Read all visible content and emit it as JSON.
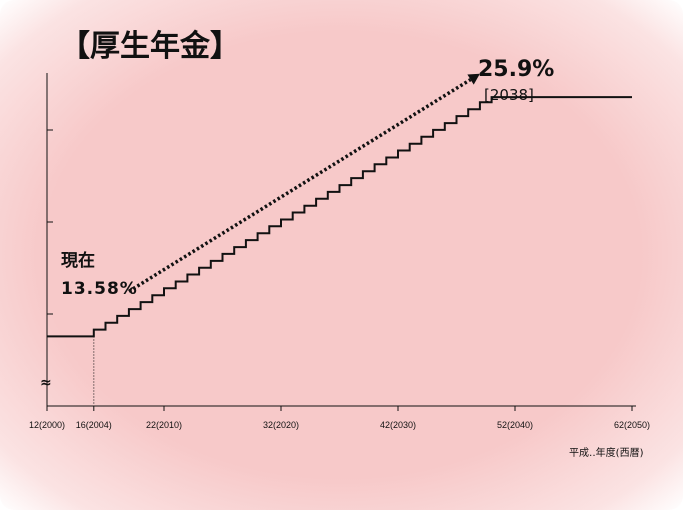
{
  "chart_data": {
    "type": "line",
    "title": "【厚生年金】",
    "xlabel": "平成‥年度(西暦)",
    "ylabel": "",
    "xlim": [
      2000,
      2050
    ],
    "ylim": [
      10,
      27.5
    ],
    "y_axis_break": true,
    "y_break_symbol": "≈",
    "x_tick_labels": [
      "12(2000)",
      "16(2004)",
      "22(2010)",
      "32(2020)",
      "42(2030)",
      "52(2040)",
      "62(2050)"
    ],
    "x_tick_years": [
      2000,
      2004,
      2010,
      2020,
      2030,
      2040,
      2050
    ],
    "series": [
      {
        "values": [
          [
            2000,
            13.58
          ],
          [
            2004,
            13.58
          ],
          [
            2004,
            13.93
          ],
          [
            2005,
            13.93
          ],
          [
            2005,
            14.28
          ],
          [
            2006,
            14.28
          ],
          [
            2006,
            14.64
          ],
          [
            2007,
            14.64
          ],
          [
            2007,
            14.99
          ],
          [
            2008,
            14.99
          ],
          [
            2008,
            15.35
          ],
          [
            2009,
            15.35
          ],
          [
            2009,
            15.7
          ],
          [
            2010,
            15.7
          ],
          [
            2010,
            16.06
          ],
          [
            2011,
            16.06
          ],
          [
            2011,
            16.41
          ],
          [
            2012,
            16.41
          ],
          [
            2012,
            16.77
          ],
          [
            2013,
            16.77
          ],
          [
            2013,
            17.12
          ],
          [
            2014,
            17.12
          ],
          [
            2014,
            17.47
          ],
          [
            2015,
            17.47
          ],
          [
            2015,
            17.83
          ],
          [
            2016,
            17.83
          ],
          [
            2016,
            18.18
          ],
          [
            2017,
            18.18
          ],
          [
            2017,
            18.54
          ],
          [
            2018,
            18.54
          ],
          [
            2018,
            18.89
          ],
          [
            2019,
            18.89
          ],
          [
            2019,
            19.25
          ],
          [
            2020,
            19.25
          ],
          [
            2020,
            19.6
          ],
          [
            2021,
            19.6
          ],
          [
            2021,
            19.96
          ],
          [
            2022,
            19.96
          ],
          [
            2022,
            20.31
          ],
          [
            2023,
            20.31
          ],
          [
            2023,
            20.67
          ],
          [
            2024,
            20.67
          ],
          [
            2024,
            21.02
          ],
          [
            2025,
            21.02
          ],
          [
            2025,
            21.37
          ],
          [
            2026,
            21.37
          ],
          [
            2026,
            21.73
          ],
          [
            2027,
            21.73
          ],
          [
            2027,
            22.08
          ],
          [
            2028,
            22.08
          ],
          [
            2028,
            22.44
          ],
          [
            2029,
            22.44
          ],
          [
            2029,
            22.79
          ],
          [
            2030,
            22.79
          ],
          [
            2030,
            23.15
          ],
          [
            2031,
            23.15
          ],
          [
            2031,
            23.5
          ],
          [
            2032,
            23.5
          ],
          [
            2032,
            23.86
          ],
          [
            2033,
            23.86
          ],
          [
            2033,
            24.21
          ],
          [
            2034,
            24.21
          ],
          [
            2034,
            24.56
          ],
          [
            2035,
            24.56
          ],
          [
            2035,
            24.92
          ],
          [
            2036,
            24.92
          ],
          [
            2036,
            25.27
          ],
          [
            2037,
            25.27
          ],
          [
            2037,
            25.63
          ],
          [
            2038,
            25.63
          ],
          [
            2038,
            25.9
          ],
          [
            2050,
            25.9
          ]
        ]
      }
    ],
    "annotations": [
      {
        "label": "現在",
        "value": "13.58%",
        "x": 2004,
        "y": 13.58
      },
      {
        "value": "25.9%",
        "detail": "[2038]",
        "x": 2038,
        "y": 25.9
      }
    ],
    "dotted_marker_year": 2004,
    "arrow": {
      "from": [
        2007,
        15.9
      ],
      "to": [
        2037,
        27.1
      ]
    },
    "grid": false
  },
  "colors": {
    "background": "#f7c9c9",
    "line": "#111111"
  }
}
